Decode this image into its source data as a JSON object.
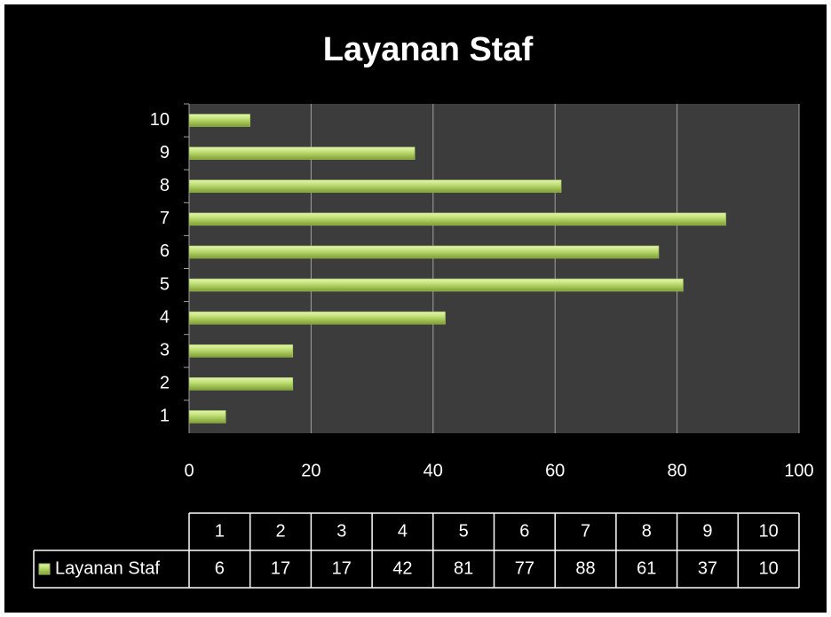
{
  "chart_data": {
    "type": "bar",
    "orientation": "horizontal",
    "title": "Layanan Staf",
    "categories": [
      "1",
      "2",
      "3",
      "4",
      "5",
      "6",
      "7",
      "8",
      "9",
      "10"
    ],
    "series": [
      {
        "name": "Layanan Staf",
        "color": "#9bbb59",
        "values": [
          6,
          17,
          17,
          42,
          81,
          77,
          88,
          61,
          37,
          10
        ]
      }
    ],
    "xlim": [
      0,
      100
    ],
    "xticks": [
      0,
      20,
      40,
      60,
      80,
      100
    ],
    "grid": true,
    "data_table": true
  }
}
